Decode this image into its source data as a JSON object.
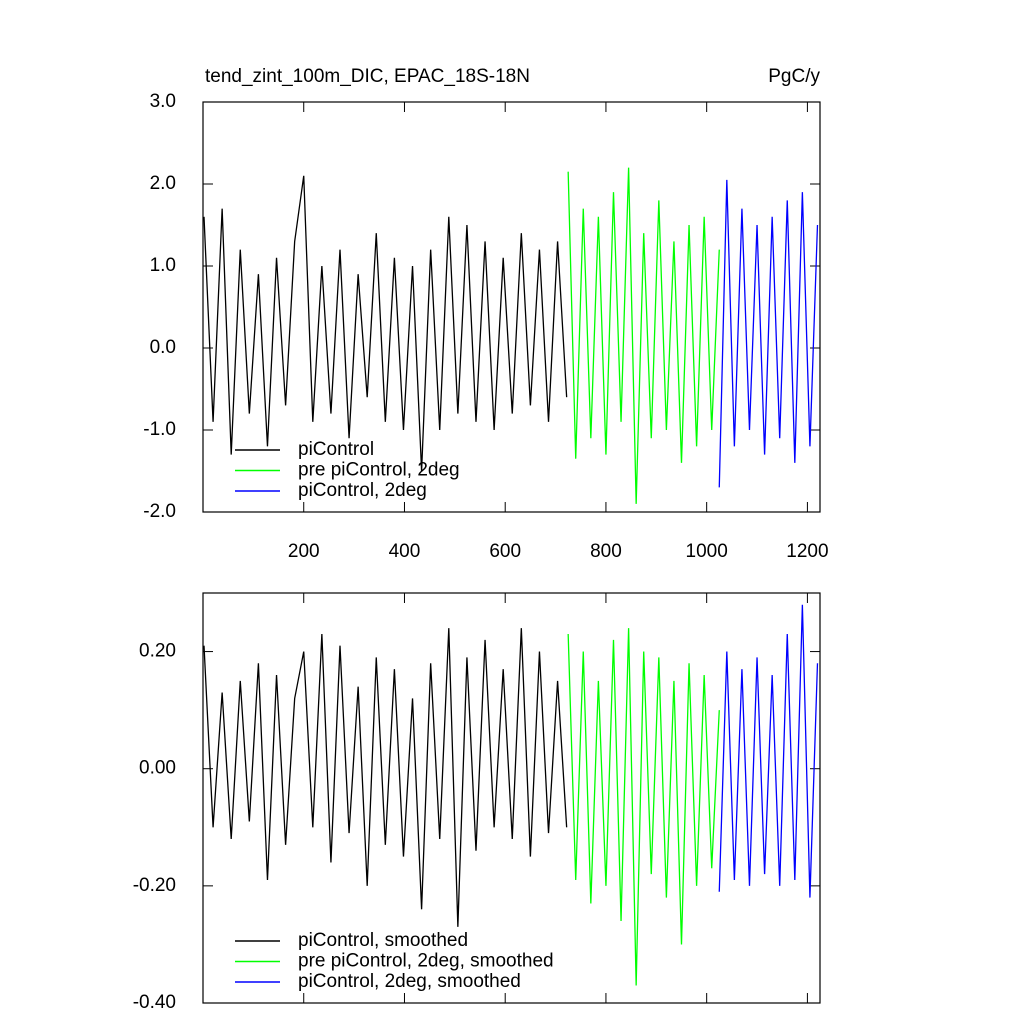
{
  "chart_data": [
    {
      "type": "line",
      "title": "tend_zint_100m_DIC, EPAC_18S-18N",
      "units": "PgC/y",
      "xlim": [
        0,
        1225
      ],
      "xticks": [
        200,
        400,
        600,
        800,
        1000,
        1200
      ],
      "ylim": [
        -2,
        3
      ],
      "yticks": [
        {
          "value": -2,
          "label": "-2.0"
        },
        {
          "value": -1,
          "label": "-1.0"
        },
        {
          "value": 0,
          "label": "0.0"
        },
        {
          "value": 1,
          "label": "1.0"
        },
        {
          "value": 2,
          "label": "2.0"
        },
        {
          "value": 3,
          "label": "3.0"
        }
      ],
      "series": [
        {
          "name": "piControl",
          "color": "#000000",
          "x": [
            2,
            20,
            38,
            56,
            74,
            92,
            110,
            128,
            146,
            164,
            182,
            200,
            218,
            236,
            254,
            272,
            290,
            308,
            326,
            344,
            362,
            380,
            398,
            416,
            434,
            452,
            470,
            488,
            506,
            524,
            542,
            560,
            578,
            596,
            614,
            632,
            650,
            668,
            686,
            704,
            722
          ],
          "values": [
            1.6,
            -0.9,
            1.7,
            -1.3,
            1.2,
            -0.8,
            0.9,
            -1.2,
            1.1,
            -0.7,
            1.3,
            2.1,
            -0.9,
            1.0,
            -0.8,
            1.2,
            -1.1,
            0.9,
            -0.6,
            1.4,
            -0.9,
            1.1,
            -1.0,
            1.0,
            -1.5,
            1.2,
            -1.0,
            1.6,
            -0.8,
            1.5,
            -0.9,
            1.3,
            -1.0,
            1.1,
            -0.8,
            1.4,
            -0.7,
            1.2,
            -0.9,
            1.3,
            -0.6
          ]
        },
        {
          "name": "pre piControl, 2deg",
          "color": "#00ff00",
          "x": [
            725,
            740,
            755,
            770,
            785,
            800,
            815,
            830,
            845,
            860,
            875,
            890,
            905,
            920,
            935,
            950,
            965,
            980,
            995,
            1010,
            1025
          ],
          "values": [
            2.15,
            -1.35,
            1.7,
            -1.1,
            1.6,
            -1.3,
            1.9,
            -0.9,
            2.2,
            -1.9,
            1.4,
            -1.1,
            1.8,
            -1.0,
            1.3,
            -1.4,
            1.5,
            -1.2,
            1.6,
            -1.0,
            1.2
          ]
        },
        {
          "name": "piControl, 2deg",
          "color": "#0000ff",
          "x": [
            1025,
            1040,
            1055,
            1070,
            1085,
            1100,
            1115,
            1130,
            1145,
            1160,
            1175,
            1190,
            1205,
            1220
          ],
          "values": [
            -1.7,
            2.05,
            -1.2,
            1.7,
            -1.0,
            1.5,
            -1.3,
            1.6,
            -1.1,
            1.8,
            -1.4,
            1.9,
            -1.2,
            1.5
          ]
        }
      ]
    },
    {
      "type": "line",
      "xlim": [
        0,
        1225
      ],
      "ylim": [
        -0.4,
        0.3
      ],
      "yticks": [
        {
          "value": -0.4,
          "label": "-0.40"
        },
        {
          "value": -0.2,
          "label": "-0.20"
        },
        {
          "value": 0,
          "label": "0.00"
        },
        {
          "value": 0.2,
          "label": "0.20"
        }
      ],
      "series": [
        {
          "name": "piControl, smoothed",
          "color": "#000000",
          "x": [
            2,
            20,
            38,
            56,
            74,
            92,
            110,
            128,
            146,
            164,
            182,
            200,
            218,
            236,
            254,
            272,
            290,
            308,
            326,
            344,
            362,
            380,
            398,
            416,
            434,
            452,
            470,
            488,
            506,
            524,
            542,
            560,
            578,
            596,
            614,
            632,
            650,
            668,
            686,
            704,
            722
          ],
          "values": [
            0.21,
            -0.1,
            0.13,
            -0.12,
            0.15,
            -0.09,
            0.18,
            -0.19,
            0.16,
            -0.13,
            0.12,
            0.2,
            -0.1,
            0.23,
            -0.16,
            0.21,
            -0.11,
            0.14,
            -0.2,
            0.19,
            -0.13,
            0.17,
            -0.15,
            0.12,
            -0.24,
            0.18,
            -0.12,
            0.24,
            -0.27,
            0.19,
            -0.14,
            0.22,
            -0.1,
            0.17,
            -0.12,
            0.24,
            -0.15,
            0.2,
            -0.11,
            0.15,
            -0.1
          ]
        },
        {
          "name": "pre piControl, 2deg, smoothed",
          "color": "#00ff00",
          "x": [
            725,
            740,
            755,
            770,
            785,
            800,
            815,
            830,
            845,
            860,
            875,
            890,
            905,
            920,
            935,
            950,
            965,
            980,
            995,
            1010,
            1025
          ],
          "values": [
            0.23,
            -0.19,
            0.2,
            -0.23,
            0.15,
            -0.2,
            0.22,
            -0.26,
            0.24,
            -0.37,
            0.2,
            -0.18,
            0.19,
            -0.22,
            0.15,
            -0.3,
            0.18,
            -0.2,
            0.16,
            -0.17,
            0.1
          ]
        },
        {
          "name": "piControl, 2deg, smoothed",
          "color": "#0000ff",
          "x": [
            1025,
            1040,
            1055,
            1070,
            1085,
            1100,
            1115,
            1130,
            1145,
            1160,
            1175,
            1190,
            1205,
            1220
          ],
          "values": [
            -0.21,
            0.2,
            -0.19,
            0.17,
            -0.2,
            0.19,
            -0.18,
            0.16,
            -0.2,
            0.23,
            -0.19,
            0.28,
            -0.22,
            0.18
          ]
        }
      ]
    }
  ]
}
